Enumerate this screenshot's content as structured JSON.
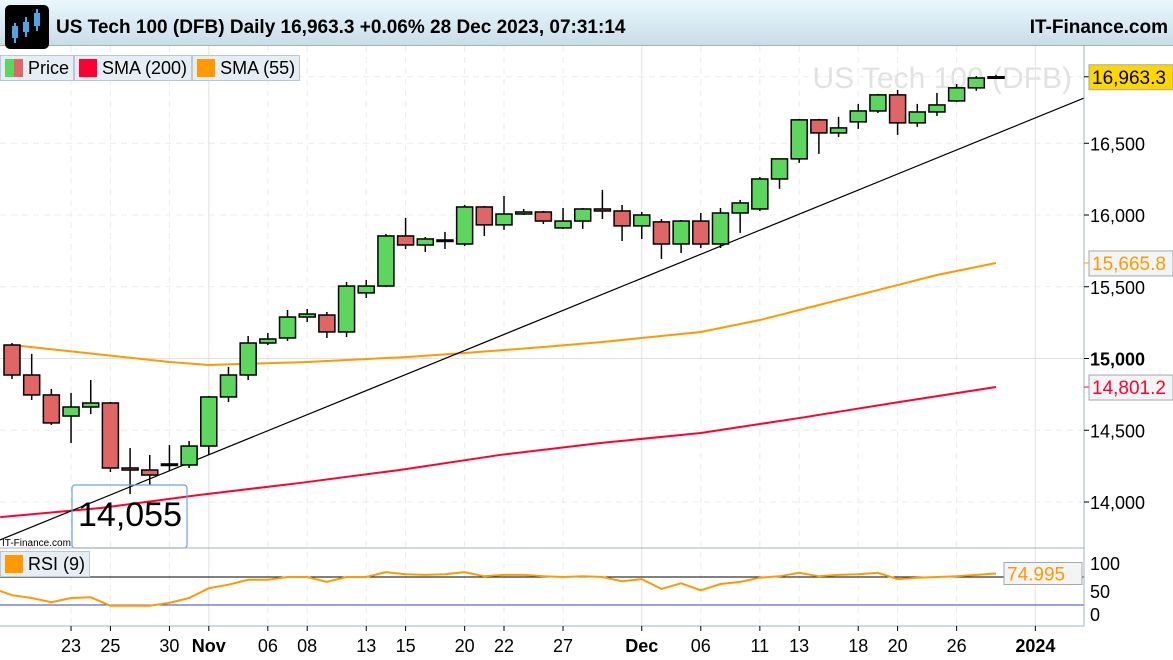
{
  "header": {
    "title": "US Tech 100 (DFB) Daily 16,963.3 +0.06% 28 Dec 2023, 07:31:14",
    "brand": "IT-Finance.com"
  },
  "legend": [
    {
      "label": "Price",
      "colors": [
        "#5cd65c",
        "#e06666"
      ]
    },
    {
      "label": "SMA (200)",
      "color": "#ff0033"
    },
    {
      "label": "SMA (55)",
      "color": "#ff9900"
    }
  ],
  "rsi_legend": {
    "label": "RSI (9)",
    "color": "#ff9900"
  },
  "watermarks": {
    "chart_title": "US Tech 100 (DFB)",
    "source": "IT-Finance.com"
  },
  "annotation": {
    "low_label": "14,055"
  },
  "price_axis": {
    "ticks": [
      {
        "v": 14000,
        "label": "14,000"
      },
      {
        "v": 14500,
        "label": "14,500"
      },
      {
        "v": 15000,
        "label": "15,000"
      },
      {
        "v": 15500,
        "label": "15,500"
      },
      {
        "v": 16000,
        "label": "16,000"
      },
      {
        "v": 16500,
        "label": "16,500"
      }
    ],
    "last_price": {
      "v": 16963.3,
      "label": "16,963.3",
      "bg": "#ffd700"
    },
    "sma55_last": {
      "v": 15665.8,
      "label": "15,665.8",
      "color": "#ff9900"
    },
    "sma200_last": {
      "v": 14801.2,
      "label": "14,801.2",
      "color": "#ff0033"
    }
  },
  "rsi_axis": {
    "ticks": [
      {
        "v": 100,
        "label": "100"
      },
      {
        "v": 50,
        "label": "50"
      },
      {
        "v": 0,
        "label": "0"
      }
    ],
    "last": {
      "v": 74.995,
      "label": "74.995"
    },
    "upper": 70,
    "lower": 30
  },
  "date_axis": [
    {
      "i": 3,
      "label": "23",
      "bold": false
    },
    {
      "i": 5,
      "label": "25",
      "bold": false
    },
    {
      "i": 8,
      "label": "30",
      "bold": false
    },
    {
      "i": 10,
      "label": "Nov",
      "bold": true
    },
    {
      "i": 13,
      "label": "06",
      "bold": false
    },
    {
      "i": 15,
      "label": "08",
      "bold": false
    },
    {
      "i": 18,
      "label": "13",
      "bold": false
    },
    {
      "i": 20,
      "label": "15",
      "bold": false
    },
    {
      "i": 23,
      "label": "20",
      "bold": false
    },
    {
      "i": 25,
      "label": "22",
      "bold": false
    },
    {
      "i": 28,
      "label": "27",
      "bold": false
    },
    {
      "i": 32,
      "label": "Dec",
      "bold": true
    },
    {
      "i": 35,
      "label": "06",
      "bold": false
    },
    {
      "i": 38,
      "label": "11",
      "bold": false
    },
    {
      "i": 40,
      "label": "13",
      "bold": false
    },
    {
      "i": 43,
      "label": "18",
      "bold": false
    },
    {
      "i": 45,
      "label": "20",
      "bold": false
    },
    {
      "i": 48,
      "label": "26",
      "bold": false
    },
    {
      "i": 52,
      "label": "2024",
      "bold": true
    }
  ],
  "chart_data": {
    "type": "candlestick",
    "title": "US Tech 100 (DFB) Daily",
    "ylim": [
      13650,
      17250
    ],
    "dates": [
      "2023-10-18",
      "2023-10-19",
      "2023-10-20",
      "2023-10-23",
      "2023-10-24",
      "2023-10-25",
      "2023-10-26",
      "2023-10-27",
      "2023-10-30",
      "2023-10-31",
      "2023-11-01",
      "2023-11-02",
      "2023-11-03",
      "2023-11-06",
      "2023-11-07",
      "2023-11-08",
      "2023-11-09",
      "2023-11-10",
      "2023-11-13",
      "2023-11-14",
      "2023-11-15",
      "2023-11-16",
      "2023-11-17",
      "2023-11-20",
      "2023-11-21",
      "2023-11-22",
      "2023-11-23",
      "2023-11-24",
      "2023-11-27",
      "2023-11-28",
      "2023-11-29",
      "2023-11-30",
      "2023-12-01",
      "2023-12-04",
      "2023-12-05",
      "2023-12-06",
      "2023-12-07",
      "2023-12-08",
      "2023-12-11",
      "2023-12-12",
      "2023-12-13",
      "2023-12-14",
      "2023-12-15",
      "2023-12-18",
      "2023-12-19",
      "2023-12-20",
      "2023-12-21",
      "2023-12-22",
      "2023-12-26",
      "2023-12-27",
      "2023-12-28"
    ],
    "ohlc": [
      [
        15094,
        15108,
        14857,
        14885
      ],
      [
        14885,
        15032,
        14711,
        14746
      ],
      [
        14746,
        14788,
        14537,
        14551
      ],
      [
        14599,
        14760,
        14411,
        14662
      ],
      [
        14662,
        14850,
        14613,
        14690
      ],
      [
        14690,
        14697,
        14209,
        14237
      ],
      [
        14237,
        14376,
        14055,
        14223
      ],
      [
        14223,
        14328,
        14118,
        14188
      ],
      [
        14258,
        14397,
        14216,
        14265
      ],
      [
        14258,
        14425,
        14237,
        14390
      ],
      [
        14390,
        14739,
        14328,
        14732
      ],
      [
        14732,
        14941,
        14697,
        14885
      ],
      [
        14885,
        15157,
        14850,
        15108
      ],
      [
        15108,
        15178,
        15094,
        15136
      ],
      [
        15143,
        15338,
        15122,
        15289
      ],
      [
        15289,
        15345,
        15254,
        15310
      ],
      [
        15303,
        15324,
        15143,
        15185
      ],
      [
        15185,
        15533,
        15150,
        15505
      ],
      [
        15457,
        15547,
        15422,
        15505
      ],
      [
        15505,
        15868,
        15498,
        15854
      ],
      [
        15854,
        15979,
        15763,
        15791
      ],
      [
        15791,
        15847,
        15742,
        15833
      ],
      [
        15826,
        15882,
        15763,
        15819
      ],
      [
        15798,
        16070,
        15784,
        16056
      ],
      [
        16056,
        16063,
        15854,
        15931
      ],
      [
        15931,
        16133,
        15896,
        16007
      ],
      [
        16007,
        16042,
        16000,
        16021
      ],
      [
        16021,
        16028,
        15937,
        15958
      ],
      [
        15910,
        16049,
        15903,
        15958
      ],
      [
        15958,
        16049,
        15903,
        16042
      ],
      [
        16042,
        16175,
        15972,
        16028
      ],
      [
        16028,
        16070,
        15819,
        15924
      ],
      [
        15924,
        16021,
        15833,
        16000
      ],
      [
        15952,
        15972,
        15694,
        15798
      ],
      [
        15798,
        15965,
        15735,
        15958
      ],
      [
        15958,
        16014,
        15770,
        15798
      ],
      [
        15798,
        16049,
        15770,
        16014
      ],
      [
        16014,
        16105,
        15875,
        16084
      ],
      [
        16042,
        16265,
        16028,
        16251
      ],
      [
        16251,
        16391,
        16182,
        16391
      ],
      [
        16391,
        16670,
        16363,
        16663
      ],
      [
        16663,
        16670,
        16426,
        16572
      ],
      [
        16572,
        16684,
        16544,
        16607
      ],
      [
        16649,
        16774,
        16600,
        16725
      ],
      [
        16725,
        16844,
        16711,
        16837
      ],
      [
        16837,
        16872,
        16558,
        16642
      ],
      [
        16642,
        16774,
        16614,
        16718
      ],
      [
        16718,
        16851,
        16690,
        16767
      ],
      [
        16795,
        16913,
        16788,
        16886
      ],
      [
        16886,
        16969,
        16865,
        16955
      ],
      [
        16955,
        16976,
        16955,
        16963.3
      ]
    ],
    "sma55": {
      "name": "SMA (55)",
      "color": "#ff9900",
      "points": [
        [
          0,
          15094
        ],
        [
          8,
          14976
        ],
        [
          10,
          14955
        ],
        [
          15,
          14976
        ],
        [
          20,
          15010
        ],
        [
          23,
          15038
        ],
        [
          27,
          15080
        ],
        [
          30,
          15115
        ],
        [
          35,
          15185
        ],
        [
          38,
          15268
        ],
        [
          40,
          15338
        ],
        [
          44,
          15477
        ],
        [
          47,
          15582
        ],
        [
          50,
          15665.8
        ]
      ]
    },
    "sma200": {
      "name": "SMA (200)",
      "color": "#ff0033",
      "points": [
        [
          -0.6,
          13895
        ],
        [
          4.5,
          13958
        ],
        [
          9.5,
          14049
        ],
        [
          14.6,
          14132
        ],
        [
          19.7,
          14223
        ],
        [
          24.8,
          14328
        ],
        [
          29.9,
          14411
        ],
        [
          35,
          14481
        ],
        [
          40,
          14585
        ],
        [
          45.1,
          14697
        ],
        [
          50,
          14801.2
        ]
      ]
    },
    "trendline": {
      "from": [
        "2023-10-18",
        13770
      ],
      "to": [
        "2023-12-28",
        16565
      ],
      "color": "#000000"
    },
    "rsi": {
      "name": "RSI (9)",
      "color": "#ff9900",
      "values": [
        44,
        40,
        34,
        40,
        41,
        29,
        29,
        29,
        33,
        40,
        54,
        59,
        66,
        66,
        70,
        70,
        63,
        70,
        70,
        77,
        74,
        73,
        74,
        77,
        71,
        73,
        73,
        71,
        70,
        71,
        70,
        64,
        67,
        53,
        61,
        51,
        60,
        63,
        69,
        71,
        76,
        71,
        73,
        74,
        76,
        67,
        69,
        70,
        71,
        73,
        74.995
      ]
    },
    "colors": {
      "up": "#5cd65c",
      "down": "#e06666"
    }
  }
}
